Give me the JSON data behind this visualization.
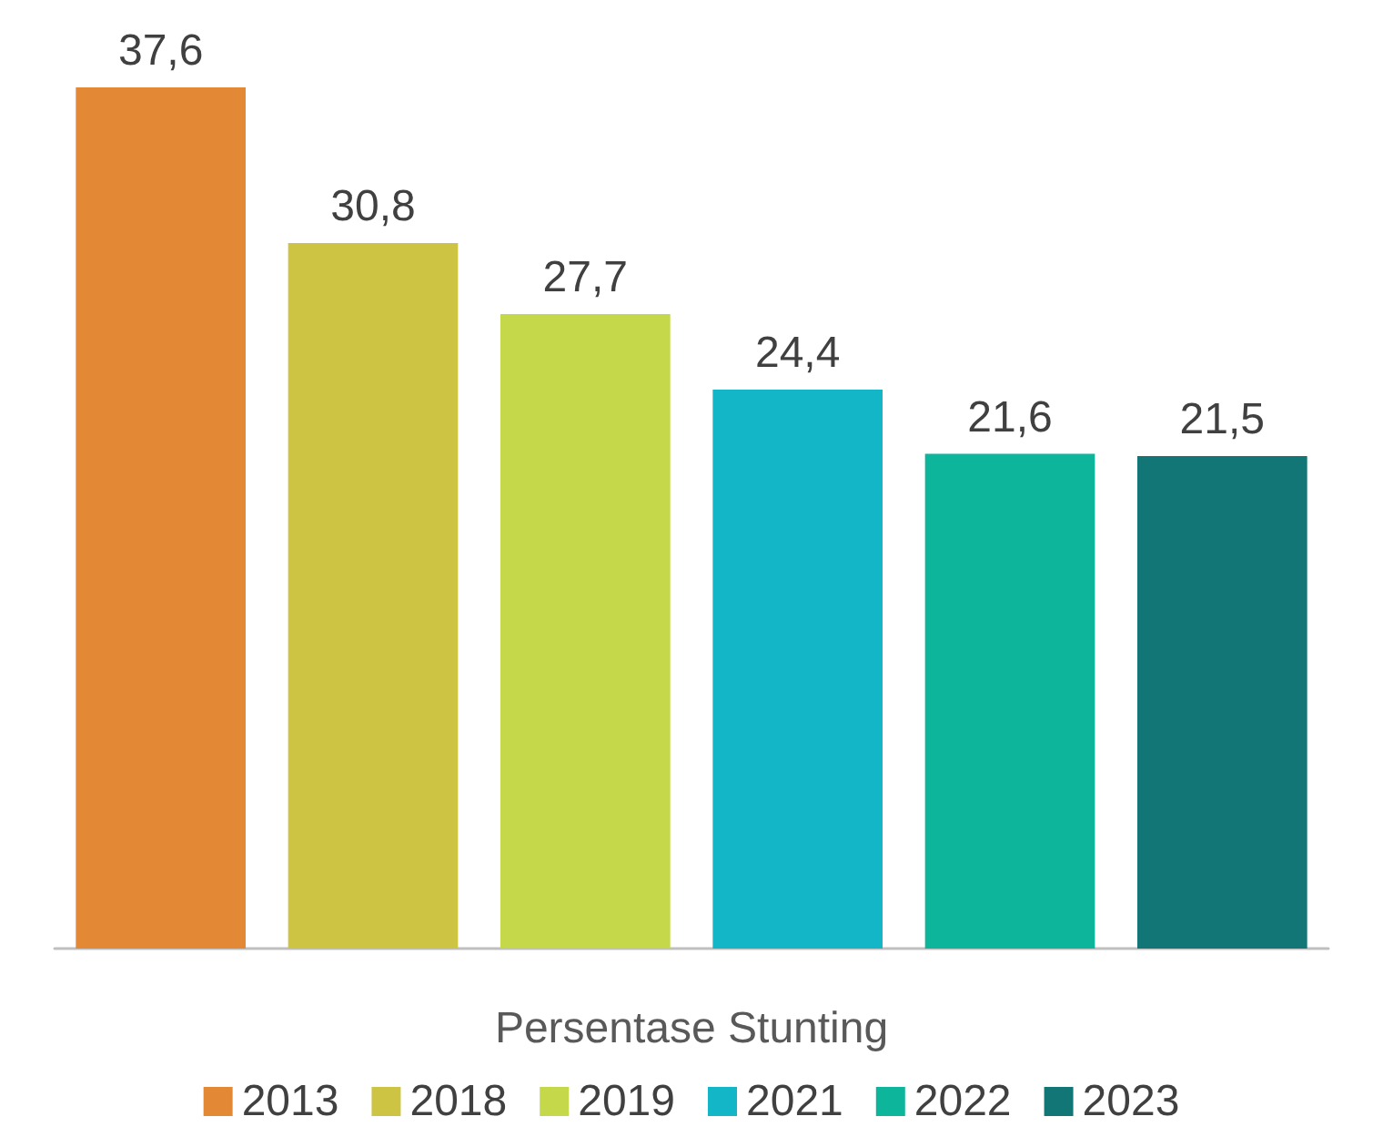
{
  "chart_data": {
    "type": "bar",
    "xlabel": "Persentase Stunting",
    "categories": [
      null,
      null,
      null,
      null,
      null,
      null
    ],
    "stacked": true,
    "series": [
      {
        "name": "2013",
        "color": "#e38936",
        "values": [
          37.6,
          null,
          null,
          null,
          null,
          null
        ],
        "value_labels": [
          "37,6",
          null,
          null,
          null,
          null,
          null
        ]
      },
      {
        "name": "2018",
        "color": "#cdc443",
        "values": [
          null,
          30.8,
          null,
          null,
          null,
          null
        ],
        "value_labels": [
          null,
          "30,8",
          null,
          null,
          null,
          null
        ]
      },
      {
        "name": "2019",
        "color": "#c5d84a",
        "values": [
          null,
          null,
          27.7,
          null,
          null,
          null
        ],
        "value_labels": [
          null,
          null,
          "27,7",
          null,
          null,
          null
        ]
      },
      {
        "name": "2021",
        "color": "#12b6c6",
        "values": [
          null,
          null,
          null,
          24.4,
          null,
          null
        ],
        "value_labels": [
          null,
          null,
          null,
          "24,4",
          null,
          null
        ]
      },
      {
        "name": "2022",
        "color": "#0db59b",
        "values": [
          null,
          null,
          null,
          null,
          21.6,
          null
        ],
        "value_labels": [
          null,
          null,
          null,
          null,
          "21,6",
          null
        ]
      },
      {
        "name": "2023",
        "color": "#127677",
        "values": [
          null,
          null,
          null,
          null,
          null,
          21.5
        ],
        "value_labels": [
          null,
          null,
          null,
          null,
          null,
          "21,5"
        ]
      }
    ],
    "legend": "bottom",
    "tick_labels": false
  }
}
